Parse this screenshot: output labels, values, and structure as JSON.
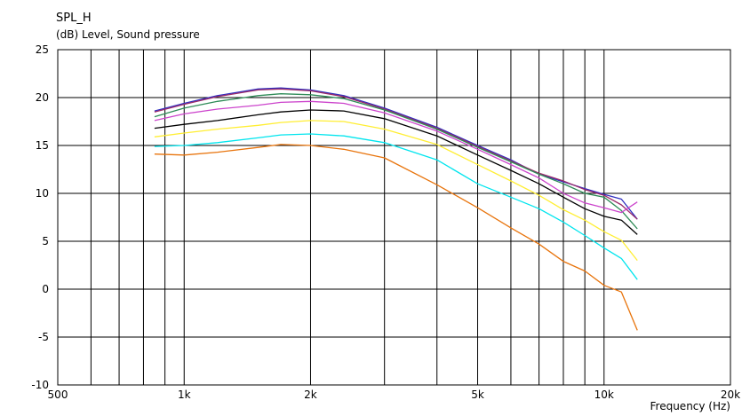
{
  "chart_data": {
    "type": "line",
    "title": "SPL_H",
    "ylabel": "(dB)  Level, Sound pressure",
    "xlabel": "Frequency  (Hz)",
    "xscale": "log",
    "xlim": [
      500,
      20000
    ],
    "ylim": [
      -10,
      25
    ],
    "grid": true,
    "x_ticks": [
      {
        "value": 500,
        "label": "500"
      },
      {
        "value": 1000,
        "label": "1k"
      },
      {
        "value": 2000,
        "label": "2k"
      },
      {
        "value": 5000,
        "label": "5k"
      },
      {
        "value": 10000,
        "label": "10k"
      },
      {
        "value": 20000,
        "label": "20k"
      }
    ],
    "y_ticks": [
      25,
      20,
      15,
      10,
      5,
      0,
      -5,
      -10
    ],
    "y_tick_labels": [
      "25",
      "20",
      "15",
      "10",
      "5",
      "0",
      "-5",
      "-10"
    ],
    "x": [
      850,
      1000,
      1200,
      1500,
      1700,
      2000,
      2400,
      3000,
      4000,
      5000,
      6000,
      7000,
      8000,
      9000,
      10000,
      11000,
      12000
    ],
    "series": [
      {
        "color": "#3030c0",
        "values": [
          18.6,
          19.4,
          20.2,
          20.9,
          21.0,
          20.8,
          20.2,
          18.9,
          16.9,
          15.0,
          13.5,
          12.0,
          11.2,
          10.5,
          9.9,
          9.4,
          7.3
        ]
      },
      {
        "color": "#9a2a6a",
        "values": [
          18.5,
          19.3,
          20.1,
          20.8,
          20.9,
          20.7,
          20.1,
          18.8,
          16.8,
          14.9,
          13.4,
          12.1,
          11.3,
          10.4,
          9.8,
          8.8,
          7.3
        ]
      },
      {
        "color": "#2e8b57",
        "values": [
          18.0,
          18.9,
          19.6,
          20.2,
          20.4,
          20.3,
          19.9,
          18.7,
          16.7,
          14.8,
          13.3,
          12.0,
          11.0,
          10.0,
          9.6,
          8.2,
          6.3
        ]
      },
      {
        "color": "#cc44cc",
        "values": [
          17.6,
          18.3,
          18.8,
          19.2,
          19.5,
          19.6,
          19.4,
          18.4,
          16.5,
          14.6,
          13.0,
          11.6,
          10.0,
          9.0,
          8.5,
          8.0,
          9.1
        ]
      },
      {
        "color": "#000000",
        "values": [
          16.8,
          17.2,
          17.6,
          18.2,
          18.5,
          18.7,
          18.6,
          17.8,
          16.0,
          14.0,
          12.4,
          11.0,
          9.6,
          8.4,
          7.6,
          7.2,
          5.7
        ]
      },
      {
        "color": "#ffee33",
        "values": [
          15.9,
          16.3,
          16.7,
          17.1,
          17.4,
          17.6,
          17.5,
          16.7,
          15.1,
          13.0,
          11.3,
          9.8,
          8.3,
          7.2,
          6.0,
          5.1,
          3.0
        ]
      },
      {
        "color": "#00e5ee",
        "values": [
          14.9,
          15.0,
          15.3,
          15.8,
          16.1,
          16.2,
          16.0,
          15.3,
          13.5,
          11.0,
          9.6,
          8.4,
          7.0,
          5.6,
          4.3,
          3.2,
          1.0
        ]
      },
      {
        "color": "#e8740c",
        "values": [
          14.1,
          14.0,
          14.3,
          14.8,
          15.1,
          15.0,
          14.6,
          13.7,
          10.9,
          8.5,
          6.4,
          4.7,
          2.9,
          1.9,
          0.4,
          -0.3,
          -4.3
        ]
      }
    ]
  }
}
